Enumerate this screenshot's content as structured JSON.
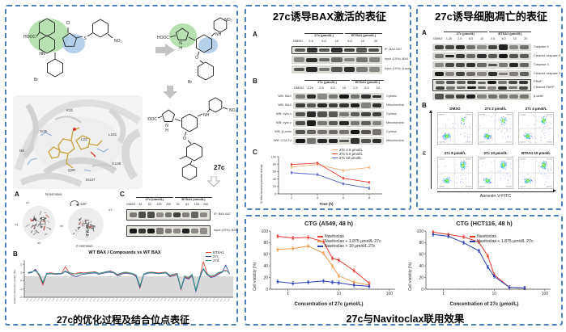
{
  "colors": {
    "border_blue": "#4f81bd",
    "red": "#e8392e",
    "orange": "#f59b4c",
    "tan": "#f2b077",
    "blue_navy": "#2841b5",
    "teal": "#2ba089",
    "gray_arrow": "#c4c4c4"
  },
  "left": {
    "caption": "27c的优化过程及结合位点表征",
    "scheme": {
      "hooc": "HOOC",
      "cl": "Cl",
      "s": "S",
      "no2": "NO₂",
      "hn": "HN",
      "n": "N",
      "h": "H",
      "nh": "NH",
      "o": "O",
      "br": "Br"
    },
    "compound_label": "27c",
    "pocket": {
      "residues": [
        "K21",
        "E25",
        "N9",
        "L22",
        "L161",
        "Q28",
        "M137",
        "G138"
      ]
    },
    "panelA": {
      "label": "A",
      "n_term": "N-terminus",
      "c_term": "C-terminus",
      "rot": "180°",
      "helices": [
        "α1",
        "α2",
        "α6",
        "α9",
        "α3"
      ]
    },
    "panelC": {
      "label": "C",
      "g1": "27c (nmol/L)",
      "g2": "BTSA1 (nmol/L)",
      "lanes": [
        "DMSO",
        "32",
        "63",
        "125",
        "250",
        "32",
        "63",
        "125",
        "250"
      ],
      "rows": [
        "IP: BAX 6A7",
        "Input (10%): BAX"
      ]
    },
    "panelB": {
      "label": "B"
    }
  },
  "middle": {
    "title": "27c诱导BAX激活的表征",
    "panelA": {
      "label": "A",
      "g1": "27c (μmol/L)",
      "g2": "BTSA1 (μmol/L)",
      "lanes": [
        "DMSO",
        "2.5",
        "5.0",
        "10",
        "5.0",
        "10",
        "20"
      ],
      "rows": [
        "IP: BAX 6A7",
        "Input (10%): BAX",
        "Input (10%): β-actin"
      ]
    },
    "panelB": {
      "label": "B",
      "g1": "27c (μmol/L)",
      "g2": "BTSA1 (μmol/L)",
      "lanes": [
        "DMSO",
        "1.25",
        "2.5",
        "5.0",
        "10",
        "2.5",
        "5.0",
        "10"
      ],
      "rows": [
        {
          "wb": "WB: BAX",
          "frac": "Cytosol"
        },
        {
          "wb": "WB: BAX",
          "frac": "Mitochondria"
        },
        {
          "wb": "WB: cyto c",
          "frac": "Cytosol"
        },
        {
          "wb": "WB: cyto c",
          "frac": "Mitochondria"
        },
        {
          "wb": "WB: β-actin",
          "frac": "Cytosol"
        },
        {
          "wb": "WB: COX IV",
          "frac": "Mitochondria"
        }
      ]
    },
    "panelC": {
      "label": "C"
    }
  },
  "right": {
    "title": "27c诱导细胞凋亡的表征",
    "panelA": {
      "label": "A",
      "g1": "27c (μmol/L)",
      "g2": "BTSA1 (μmol/L)",
      "lanes": [
        "DMSO",
        "1.25",
        "2.5",
        "5.0",
        "10",
        "2.5",
        "5.0",
        "10",
        "20"
      ],
      "rows": [
        {
          "label": "Caspase 9"
        },
        {
          "label": "Cleaved caspase 9"
        },
        {
          "label": "Caspase 3"
        },
        {
          "label": "Cleaved caspase 3"
        },
        {
          "label": "PRAP",
          "label2": "Cleaved PARP"
        },
        {
          "label": "β-actin"
        }
      ]
    },
    "panelB": {
      "label": "B",
      "titles": [
        "DMSO",
        "27c 2 μmol/L",
        "27c 4 μmol/L",
        "27c 8 μmol/L",
        "27c 10 μmol/L",
        "BTSA1 10 μmol/L"
      ],
      "xlabel": "Annexin V-FITC",
      "ylabel": "PI"
    }
  },
  "bottom": {
    "caption": "27c与Navitoclax联用效果"
  },
  "chart_data": [
    {
      "id": "mito-potential",
      "type": "line",
      "x": [
        2,
        4,
        6,
        8
      ],
      "xlim": [
        1,
        9
      ],
      "xticks": [
        2,
        4,
        6,
        8
      ],
      "xlabel": "Time (h)",
      "ylabel": "% Mitochondrial potential change",
      "ylim": [
        0,
        100
      ],
      "yticks": [
        0,
        20,
        40,
        60,
        80,
        100
      ],
      "err": 3,
      "legend_position": "top-right",
      "series": [
        {
          "name": "27c  2.5 μmol/L",
          "color": "#f2b077",
          "values": [
            72,
            79,
            63,
            71
          ]
        },
        {
          "name": "27c  5.0 μmol/L",
          "color": "#e8392e",
          "values": [
            79,
            83,
            42,
            31
          ]
        },
        {
          "name": "27c  10 μmol/L",
          "color": "#4a5fc0",
          "values": [
            57,
            52,
            27,
            15
          ]
        }
      ]
    },
    {
      "id": "hdx-uptake",
      "type": "line",
      "title": "WT BAX / Compounds vs WT BAX",
      "ylabel": "Relative deuterium uptake (%)",
      "ylim": [
        -2,
        2.5
      ],
      "yticks": [
        -2,
        -1,
        0,
        1,
        2
      ],
      "band": [
        -2,
        0.55
      ],
      "n_points": 55,
      "x_axis_note": "peptide-segment tick labels (too small to read in source)",
      "legend_position": "right",
      "series": [
        {
          "name": "BTSA1",
          "color": "#e8392e",
          "values": [
            1.0,
            1.05,
            1.3,
            0.6,
            -0.5,
            0.9,
            0.95,
            0.9,
            0.85,
            0.9,
            1.7,
            1.0,
            0.8,
            0.9,
            1.0,
            0.95,
            1.0,
            1.05,
            1.1,
            0.9,
            1.0,
            1.1,
            1.2,
            1.05,
            0.7,
            0.9,
            1.0,
            0.95,
            0.9,
            0.6,
            -0.9,
            0.8,
            1.0,
            1.05,
            1.0,
            0.95,
            1.0,
            1.05,
            0.6,
            0.7,
            0.8,
            -1.1,
            0.5,
            0.3,
            0.7,
            -1.2,
            0.4,
            2.3,
            0.9,
            0.5,
            0.6,
            0.9,
            1.1,
            1.3,
            0.9
          ]
        },
        {
          "name": "27c",
          "color": "#2b3d94",
          "values": [
            0.9,
            1.0,
            1.4,
            0.7,
            -0.3,
            0.8,
            0.85,
            0.8,
            0.8,
            0.85,
            1.1,
            0.9,
            0.6,
            0.5,
            0.7,
            0.8,
            0.85,
            0.9,
            0.95,
            0.8,
            0.9,
            1.0,
            1.05,
            0.95,
            0.6,
            0.8,
            0.9,
            0.85,
            0.8,
            0.5,
            -0.8,
            0.7,
            0.9,
            0.95,
            0.9,
            0.85,
            0.9,
            0.95,
            0.5,
            0.6,
            0.7,
            -1.0,
            0.4,
            0.2,
            0.6,
            -1.3,
            0.3,
            1.4,
            0.7,
            0.4,
            0.5,
            0.8,
            1.0,
            1.9,
            0.8
          ]
        },
        {
          "name": "27d",
          "color": "#2ba089",
          "values": [
            1.0,
            1.1,
            1.2,
            0.8,
            -0.2,
            0.9,
            0.9,
            0.85,
            0.9,
            0.9,
            1.2,
            1.0,
            0.9,
            0.8,
            0.9,
            0.9,
            0.95,
            1.0,
            1.05,
            0.9,
            1.0,
            1.1,
            1.15,
            1.0,
            0.8,
            0.95,
            1.05,
            1.0,
            0.9,
            0.7,
            -0.6,
            0.8,
            1.0,
            1.0,
            0.95,
            0.9,
            0.95,
            1.0,
            0.7,
            0.8,
            0.9,
            -0.9,
            0.6,
            0.4,
            0.8,
            -1.1,
            0.5,
            1.5,
            0.8,
            0.6,
            0.7,
            1.0,
            1.1,
            1.2,
            1.0
          ]
        }
      ]
    },
    {
      "id": "ctg-a549",
      "type": "line",
      "logx": true,
      "title": "CTG (A549, 48 h)",
      "x": [
        0.625,
        1.25,
        2.5,
        5,
        7.5,
        10,
        20,
        40
      ],
      "xlim": [
        0.45,
        130
      ],
      "xticks": [
        1,
        10,
        100
      ],
      "xlabel": "Concentration of 27c (μmol/L)",
      "ylabel": "Cell viability (%)",
      "ylim": [
        0,
        100
      ],
      "yticks": [
        0,
        20,
        40,
        60,
        80,
        100
      ],
      "err": 3,
      "legend_position": "top-right",
      "series": [
        {
          "name": "Navitoclax",
          "color": "#e8392e",
          "values": [
            91,
            88,
            89,
            82,
            53,
            50,
            32,
            10
          ]
        },
        {
          "name": "Navitoclax + 1.875 μmol/L 27c",
          "color": "#f59b4c",
          "values": [
            68,
            70,
            74,
            62,
            40,
            23,
            12,
            7
          ]
        },
        {
          "name": "Navitoclax + 10 μmol/L 27c",
          "color": "#2841b5",
          "values": [
            13,
            10,
            12,
            14,
            12,
            11,
            7,
            5
          ]
        }
      ]
    },
    {
      "id": "ctg-hct116",
      "type": "line",
      "logx": true,
      "title": "CTG (HCT116, 48 h)",
      "x": [
        0.625,
        1.25,
        2.5,
        5,
        7.5,
        10,
        20,
        40
      ],
      "xlim": [
        0.45,
        130
      ],
      "xticks": [
        1,
        10,
        100
      ],
      "xlabel": "Concentration of 27c (μmol/L)",
      "ylabel": "Cell viability (%)",
      "ylim": [
        0,
        100
      ],
      "yticks": [
        0,
        20,
        40,
        60,
        80,
        100
      ],
      "err": 3,
      "legend_position": "top-right",
      "series": [
        {
          "name": "Navitoclax",
          "color": "#e8392e",
          "values": [
            98,
            94,
            90,
            81,
            57,
            25,
            3,
            2
          ]
        },
        {
          "name": "Navitoclax + 1.875 μmol/L 27c",
          "color": "#2841b5",
          "values": [
            94,
            91,
            80,
            66,
            38,
            22,
            3,
            2
          ]
        }
      ]
    }
  ]
}
